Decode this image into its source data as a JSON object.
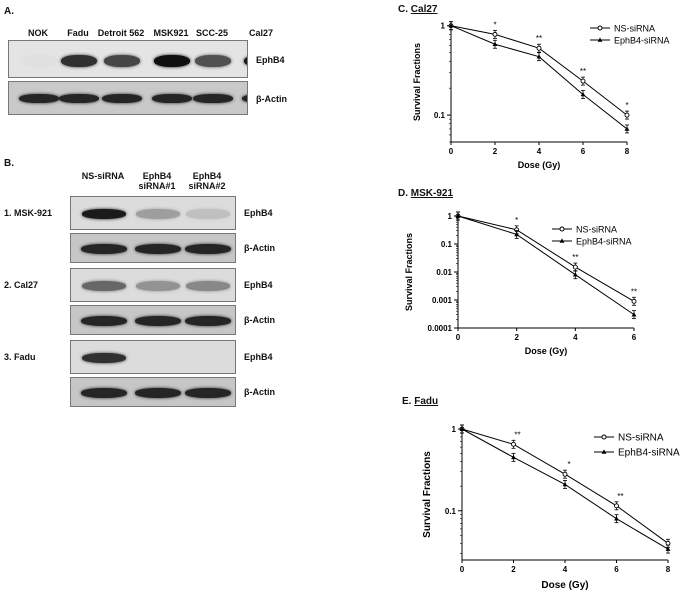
{
  "panelA": {
    "letter": "A.",
    "lanes": [
      "NOK",
      "Fadu",
      "Detroit 562",
      "MSK921",
      "SCC-25",
      "Cal27"
    ],
    "row_labels": [
      "EphB4",
      "β-Actin"
    ],
    "ephb4_intensity": [
      0.05,
      0.85,
      0.75,
      1.0,
      0.7,
      0.95
    ],
    "actin_intensity": [
      0.9,
      0.9,
      0.9,
      0.9,
      0.9,
      0.9
    ]
  },
  "panelB": {
    "letter": "B.",
    "lanes": [
      "NS-siRNA",
      "EphB4\nsiRNA#1",
      "EphB4\nsiRNA#2"
    ],
    "groups": [
      {
        "name": "1. MSK-921",
        "ephb4_intensity": [
          0.95,
          0.35,
          0.2
        ],
        "actin_intensity": [
          0.9,
          0.9,
          0.9
        ],
        "row_labels": [
          "EphB4",
          "β-Actin"
        ]
      },
      {
        "name": "2. Cal27",
        "ephb4_intensity": [
          0.6,
          0.4,
          0.45
        ],
        "actin_intensity": [
          0.9,
          0.9,
          0.9
        ],
        "row_labels": [
          "EphB4",
          "β-Actin"
        ]
      },
      {
        "name": "3. Fadu",
        "ephb4_intensity": [
          0.85,
          0.0,
          0.0
        ],
        "actin_intensity": [
          0.9,
          0.9,
          0.9
        ],
        "row_labels": [
          "EphB4",
          "β-Actin"
        ]
      }
    ]
  },
  "chart_data": [
    {
      "type": "line",
      "letter": "C.",
      "cell_line": "Cal27",
      "xlabel": "Dose (Gy)",
      "ylabel": "Survival Fractions",
      "yscale": "log",
      "x_ticks": [
        "0",
        "2",
        "4",
        "6",
        "8"
      ],
      "y_ticks": [
        {
          "v": 1,
          "label": "1"
        },
        {
          "v": 0.1,
          "label": "0.1"
        }
      ],
      "xlim": [
        0,
        8
      ],
      "ylim": [
        0.05,
        1.1
      ],
      "x": [
        0,
        2,
        4,
        6,
        8
      ],
      "series": [
        {
          "name": "NS-siRNA",
          "marker": "open",
          "values": [
            1,
            0.8,
            0.56,
            0.24,
            0.1
          ]
        },
        {
          "name": "EphB4-siRNA",
          "marker": "filled",
          "values": [
            1,
            0.62,
            0.45,
            0.17,
            0.07
          ]
        }
      ],
      "annotations": [
        {
          "x": 2,
          "text": "*"
        },
        {
          "x": 4,
          "text": "**"
        },
        {
          "x": 6,
          "text": "**"
        },
        {
          "x": 8,
          "text": "*"
        }
      ],
      "legend": "top-right"
    },
    {
      "type": "line",
      "letter": "D.",
      "cell_line": "MSK-921",
      "xlabel": "Dose (Gy)",
      "ylabel": "Survival Fractions",
      "yscale": "log",
      "x_ticks": [
        "0",
        "2",
        "4",
        "6"
      ],
      "y_ticks": [
        {
          "v": 1,
          "label": "1"
        },
        {
          "v": 0.1,
          "label": "0.1"
        },
        {
          "v": 0.01,
          "label": "0.01"
        },
        {
          "v": 0.001,
          "label": "0.001"
        },
        {
          "v": 0.0001,
          "label": "0.0001"
        }
      ],
      "xlim": [
        0,
        6
      ],
      "ylim": [
        0.0001,
        1
      ],
      "x": [
        0,
        2,
        4,
        6
      ],
      "series": [
        {
          "name": "NS-siRNA",
          "marker": "open",
          "values": [
            1,
            0.32,
            0.015,
            0.0009
          ]
        },
        {
          "name": "EphB4-siRNA",
          "marker": "filled",
          "values": [
            1,
            0.22,
            0.008,
            0.0003
          ]
        }
      ],
      "annotations": [
        {
          "x": 2,
          "text": "*"
        },
        {
          "x": 4,
          "text": "**"
        },
        {
          "x": 6,
          "text": "**"
        }
      ],
      "legend": "top-right"
    },
    {
      "type": "line",
      "letter": "E.",
      "cell_line": "Fadu",
      "xlabel": "Dose (Gy)",
      "ylabel": "Survival Fractions",
      "yscale": "log",
      "x_ticks": [
        "0",
        "2",
        "4",
        "6",
        "8"
      ],
      "y_ticks": [
        {
          "v": 1,
          "label": "1"
        },
        {
          "v": 0.1,
          "label": "0.1"
        }
      ],
      "xlim": [
        0,
        8
      ],
      "ylim": [
        0.025,
        1
      ],
      "x": [
        0,
        2,
        4,
        6,
        8
      ],
      "series": [
        {
          "name": "NS-siRNA",
          "marker": "open",
          "values": [
            1,
            0.65,
            0.28,
            0.115,
            0.04
          ]
        },
        {
          "name": "EphB4-siRNA",
          "marker": "filled",
          "values": [
            1,
            0.45,
            0.21,
            0.08,
            0.034
          ]
        }
      ],
      "annotations": [
        {
          "x": 2,
          "text": "**"
        },
        {
          "x": 4,
          "text": "*"
        },
        {
          "x": 6,
          "text": "**"
        }
      ],
      "legend": "top-right"
    }
  ]
}
